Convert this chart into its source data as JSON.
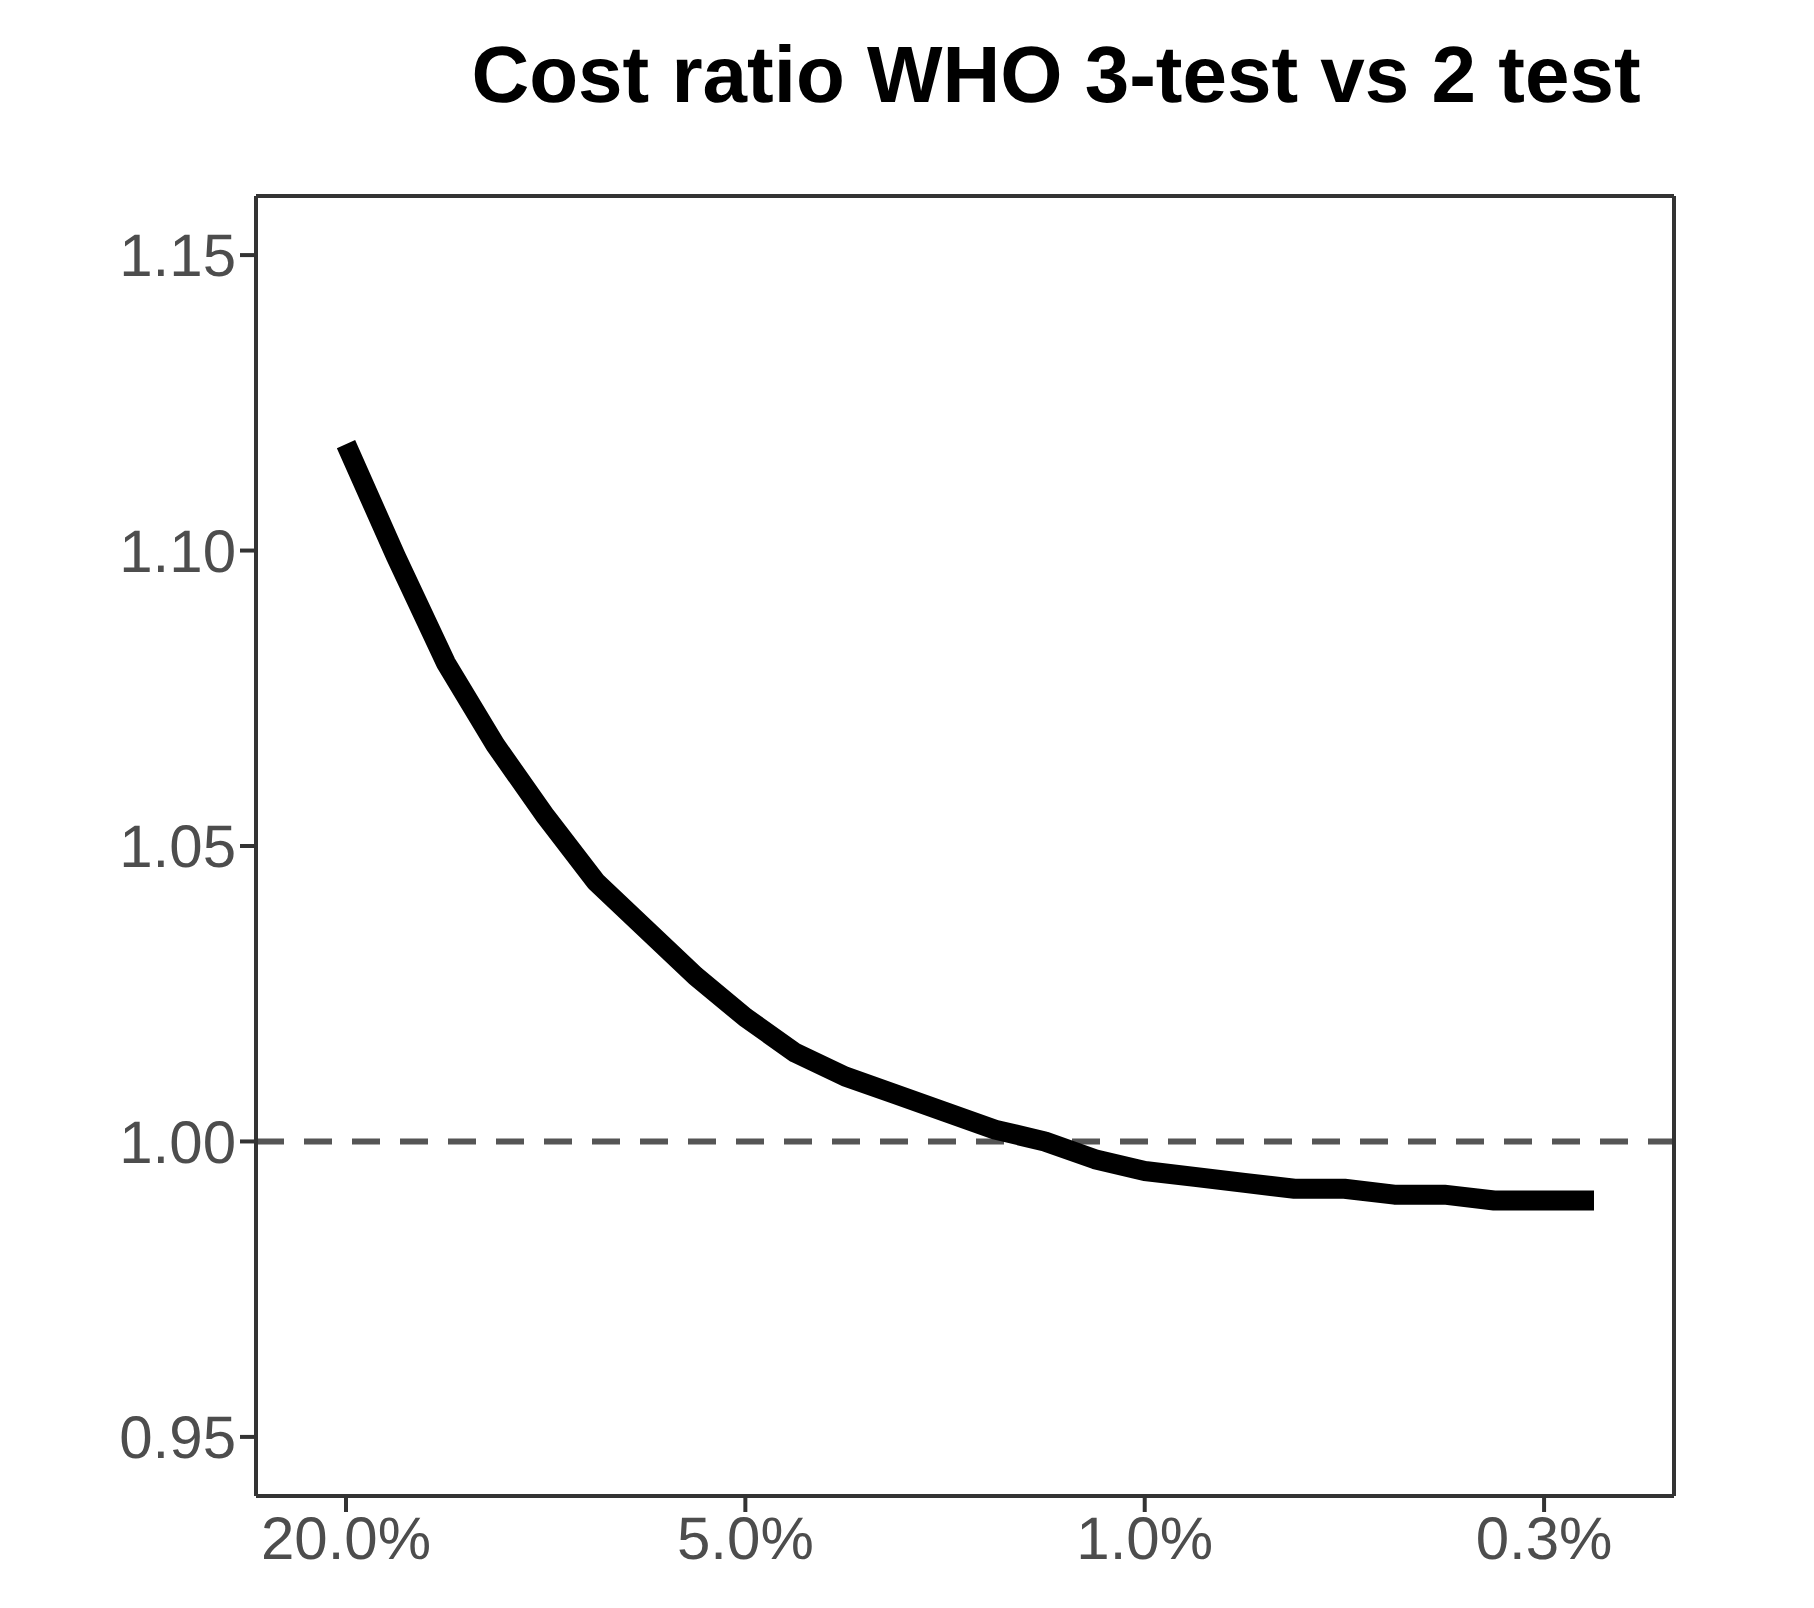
{
  "chart_data": {
    "type": "line",
    "title": "Cost ratio WHO 3-test vs 2 test",
    "categories": [
      "20.0%",
      null,
      null,
      null,
      null,
      null,
      null,
      null,
      "5.0%",
      null,
      null,
      null,
      null,
      null,
      null,
      null,
      "1.0%",
      null,
      null,
      null,
      null,
      null,
      null,
      null,
      "0.3%",
      null
    ],
    "series": [
      {
        "color": "#000000",
        "values": [
          1.118,
          1.099,
          1.081,
          1.067,
          1.055,
          1.044,
          1.036,
          1.028,
          1.021,
          1.015,
          1.011,
          1.008,
          1.005,
          1.002,
          1.0,
          0.997,
          0.995,
          0.994,
          0.993,
          0.992,
          0.992,
          0.991,
          0.991,
          0.99,
          0.99,
          0.99
        ]
      }
    ],
    "ylim": [
      0.94,
      1.16
    ],
    "yticks": [
      {
        "value": 0.95,
        "label": "0.95"
      },
      {
        "value": 1,
        "label": "1.00"
      },
      {
        "value": 1.05,
        "label": "1.05"
      },
      {
        "value": 1.1,
        "label": "1.10"
      },
      {
        "value": 1.15,
        "label": "1.15"
      }
    ],
    "ref_lines": [
      {
        "axis": "y",
        "value": 1,
        "color": "#555555",
        "line_style": "dashed"
      }
    ],
    "grid": false,
    "legend": false,
    "marker": "none",
    "line_style": "solid"
  }
}
